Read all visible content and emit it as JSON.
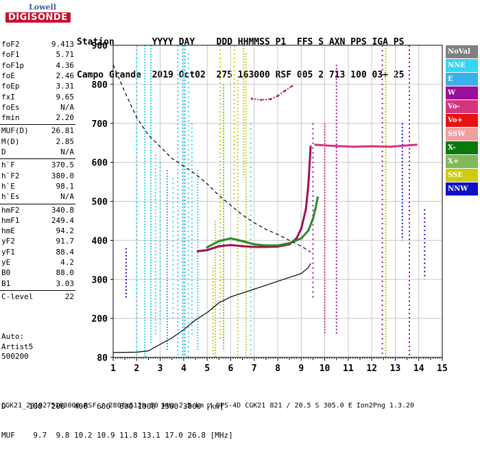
{
  "logo": {
    "line1": "Lowell",
    "line2": "DIGISONDE"
  },
  "header": {
    "row1": "Station       YYYY DAY    DDD HHMMSS P1  FFS S AXN PPS IGA PS",
    "row2": "Campo Grande  2019 Oct02  275 163000 RSF 005 2 713 100 03+ 25"
  },
  "params_group1": [
    {
      "k": "foF2",
      "v": "9.413"
    },
    {
      "k": "foF1",
      "v": "5.71"
    },
    {
      "k": "foF1p",
      "v": "4.36"
    },
    {
      "k": "foE",
      "v": "2.46"
    },
    {
      "k": "foEp",
      "v": "3.31"
    },
    {
      "k": "fxI",
      "v": "9.65"
    },
    {
      "k": "foEs",
      "v": "N/A"
    },
    {
      "k": "fmin",
      "v": "2.20"
    }
  ],
  "params_group2": [
    {
      "k": "MUF(D)",
      "v": "26.81"
    },
    {
      "k": "M(D)",
      "v": "2.85"
    },
    {
      "k": "D",
      "v": "N/A"
    }
  ],
  "params_group3": [
    {
      "k": "h`F",
      "v": "370.5"
    },
    {
      "k": "h`F2",
      "v": "380.0"
    },
    {
      "k": "h`E",
      "v": "98.1"
    },
    {
      "k": "h`Es",
      "v": "N/A"
    }
  ],
  "params_group4": [
    {
      "k": "hmF2",
      "v": "340.8"
    },
    {
      "k": "hmF1",
      "v": "249.4"
    },
    {
      "k": "hmE",
      "v": "94.2"
    },
    {
      "k": "yF2",
      "v": "91.7"
    },
    {
      "k": "yF1",
      "v": "88.4"
    },
    {
      "k": "yE",
      "v": "4.2"
    },
    {
      "k": "B0",
      "v": "88.0"
    },
    {
      "k": "B1",
      "v": "3.03"
    }
  ],
  "params_group5": [
    {
      "k": "C-level",
      "v": "22"
    }
  ],
  "autoscaling": {
    "line1": "Auto:",
    "line2": "Artist5",
    "line3": "500200"
  },
  "legend": [
    {
      "label": "NoVal",
      "color": "#808080"
    },
    {
      "label": "NNE",
      "color": "#33d6f2"
    },
    {
      "label": "E",
      "color": "#3ab0ec"
    },
    {
      "label": "W",
      "color": "#9b0d9b"
    },
    {
      "label": "Vo-",
      "color": "#d6347f"
    },
    {
      "label": "Vo+",
      "color": "#e81010"
    },
    {
      "label": "SSW",
      "color": "#f0a0a0"
    },
    {
      "label": "X-",
      "color": "#0b7a0b"
    },
    {
      "label": "X+",
      "color": "#7fba5a"
    },
    {
      "label": "SSE",
      "color": "#cccc10"
    },
    {
      "label": "NNW",
      "color": "#1010c8"
    }
  ],
  "footer": {
    "row1": "D     100  200  400  600  800 1000 1500 3000 [km]",
    "row2": "MUF    9.7  9.8 10.2 10.9 11.8 13.1 17.0 26.8 [MHz]",
    "row3": "CGK21_2019275163000.RSF / 280fx512h 50 kHz 2.5 km / DPS-4D CGK21 821 / 20.5 S 305.0 E Ion2Png 1.3.20"
  },
  "chart_data": {
    "type": "scatter",
    "title": "",
    "xlabel": "",
    "ylabel": "",
    "xlim": [
      1,
      15
    ],
    "ylim": [
      80,
      900
    ],
    "x_ticks": [
      1,
      2,
      3,
      4,
      5,
      6,
      7,
      8,
      9,
      10,
      11,
      12,
      13,
      14,
      15
    ],
    "y_ticks": [
      80,
      200,
      300,
      400,
      500,
      600,
      700,
      800,
      900
    ],
    "grid": true,
    "legend_position": "right",
    "series": [
      {
        "name": "Vo- (O-trace)",
        "values": [
          [
            4.6,
            372
          ],
          [
            5.0,
            375
          ],
          [
            5.5,
            385
          ],
          [
            6.0,
            388
          ],
          [
            6.5,
            385
          ],
          [
            7.0,
            383
          ],
          [
            7.5,
            383
          ],
          [
            8.0,
            384
          ],
          [
            8.5,
            390
          ],
          [
            8.8,
            405
          ],
          [
            9.0,
            430
          ],
          [
            9.2,
            480
          ],
          [
            9.3,
            540
          ],
          [
            9.4,
            640
          ]
        ]
      },
      {
        "name": "X- (X-trace)",
        "values": [
          [
            5.0,
            382
          ],
          [
            5.5,
            398
          ],
          [
            6.0,
            405
          ],
          [
            6.5,
            398
          ],
          [
            7.0,
            390
          ],
          [
            7.5,
            387
          ],
          [
            8.0,
            387
          ],
          [
            8.5,
            393
          ],
          [
            9.0,
            405
          ],
          [
            9.3,
            425
          ],
          [
            9.5,
            455
          ],
          [
            9.6,
            480
          ],
          [
            9.7,
            510
          ]
        ]
      },
      {
        "name": "Vo- (Es upper band)",
        "values": [
          [
            6.9,
            763
          ],
          [
            7.3,
            760
          ],
          [
            7.7,
            762
          ],
          [
            8.0,
            770
          ],
          [
            8.3,
            783
          ],
          [
            8.6,
            795
          ]
        ]
      },
      {
        "name": "Vo- (oblique 640 km)",
        "values": [
          [
            9.6,
            645
          ],
          [
            10.4,
            642
          ],
          [
            11.2,
            640
          ],
          [
            12.0,
            641
          ],
          [
            12.8,
            640
          ],
          [
            13.4,
            643
          ],
          [
            13.9,
            645
          ]
        ]
      },
      {
        "name": "Profile (dashed, virtual)",
        "values": [
          [
            1.0,
            850
          ],
          [
            1.5,
            780
          ],
          [
            2.0,
            715
          ],
          [
            2.5,
            670
          ],
          [
            3.0,
            640
          ],
          [
            3.5,
            610
          ],
          [
            4.0,
            590
          ],
          [
            4.5,
            570
          ],
          [
            5.0,
            545
          ],
          [
            5.5,
            515
          ],
          [
            6.0,
            490
          ],
          [
            6.5,
            465
          ],
          [
            7.0,
            445
          ],
          [
            7.5,
            428
          ],
          [
            8.0,
            415
          ],
          [
            8.5,
            400
          ],
          [
            9.0,
            385
          ],
          [
            9.4,
            370
          ]
        ]
      },
      {
        "name": "Profile (solid, true height)",
        "values": [
          [
            1.0,
            95
          ],
          [
            2.0,
            96
          ],
          [
            2.5,
            100
          ],
          [
            3.0,
            120
          ],
          [
            3.5,
            140
          ],
          [
            4.0,
            165
          ],
          [
            4.5,
            195
          ],
          [
            5.0,
            215
          ],
          [
            5.5,
            240
          ],
          [
            6.0,
            255
          ],
          [
            6.5,
            265
          ],
          [
            7.0,
            275
          ],
          [
            7.5,
            285
          ],
          [
            8.0,
            295
          ],
          [
            8.5,
            305
          ],
          [
            9.0,
            315
          ],
          [
            9.3,
            330
          ],
          [
            9.4,
            341
          ]
        ]
      }
    ],
    "noise_columns": [
      {
        "x": 1.55,
        "y": [
          250,
          380
        ],
        "color": "#1010c8"
      },
      {
        "x": 2.0,
        "y": [
          80,
          900
        ],
        "color": "#33d6f2"
      },
      {
        "x": 2.35,
        "y": [
          80,
          900
        ],
        "color": "#33d6f2"
      },
      {
        "x": 2.6,
        "y": [
          120,
          900
        ],
        "color": "#33d6f2"
      },
      {
        "x": 2.8,
        "y": [
          150,
          620
        ],
        "color": "#33d6f2"
      },
      {
        "x": 3.0,
        "y": [
          180,
          600
        ],
        "color": "#33d6f2"
      },
      {
        "x": 3.3,
        "y": [
          100,
          580
        ],
        "color": "#3ab0ec"
      },
      {
        "x": 3.55,
        "y": [
          200,
          560
        ],
        "color": "#33d6f2"
      },
      {
        "x": 3.75,
        "y": [
          80,
          900
        ],
        "color": "#33d6f2"
      },
      {
        "x": 3.95,
        "y": [
          80,
          900
        ],
        "color": "#33d6f2"
      },
      {
        "x": 4.05,
        "y": [
          80,
          900
        ],
        "color": "#3ab0ec"
      },
      {
        "x": 4.2,
        "y": [
          80,
          880
        ],
        "color": "#33d6f2"
      },
      {
        "x": 4.35,
        "y": [
          150,
          700
        ],
        "color": "#33d6f2"
      },
      {
        "x": 4.6,
        "y": [
          100,
          580
        ],
        "color": "#33d6f2"
      },
      {
        "x": 5.25,
        "y": [
          80,
          330
        ],
        "color": "#cccc10"
      },
      {
        "x": 5.35,
        "y": [
          80,
          450
        ],
        "color": "#cccc10"
      },
      {
        "x": 5.55,
        "y": [
          130,
          900
        ],
        "color": "#cccc10"
      },
      {
        "x": 5.7,
        "y": [
          100,
          800
        ],
        "color": "#7fba5a"
      },
      {
        "x": 6.15,
        "y": [
          500,
          900
        ],
        "color": "#cccc10"
      },
      {
        "x": 6.3,
        "y": [
          80,
          820
        ],
        "color": "#cccc10"
      },
      {
        "x": 6.55,
        "y": [
          560,
          900
        ],
        "color": "#cccc10"
      },
      {
        "x": 6.65,
        "y": [
          80,
          880
        ],
        "color": "#cccc10"
      },
      {
        "x": 6.85,
        "y": [
          80,
          700
        ],
        "color": "#33d6f2"
      },
      {
        "x": 9.5,
        "y": [
          250,
          700
        ],
        "color": "#9b0d9b"
      },
      {
        "x": 10.0,
        "y": [
          150,
          700
        ],
        "color": "#d6347f"
      },
      {
        "x": 10.5,
        "y": [
          150,
          850
        ],
        "color": "#9b0d9b"
      },
      {
        "x": 12.45,
        "y": [
          80,
          900
        ],
        "color": "#9b0d9b"
      },
      {
        "x": 12.6,
        "y": [
          80,
          900
        ],
        "color": "#cccc10"
      },
      {
        "x": 13.3,
        "y": [
          400,
          700
        ],
        "color": "#1010c8"
      },
      {
        "x": 13.6,
        "y": [
          80,
          900
        ],
        "color": "#9b0d9b"
      },
      {
        "x": 14.25,
        "y": [
          300,
          480
        ],
        "color": "#1010c8"
      }
    ]
  }
}
